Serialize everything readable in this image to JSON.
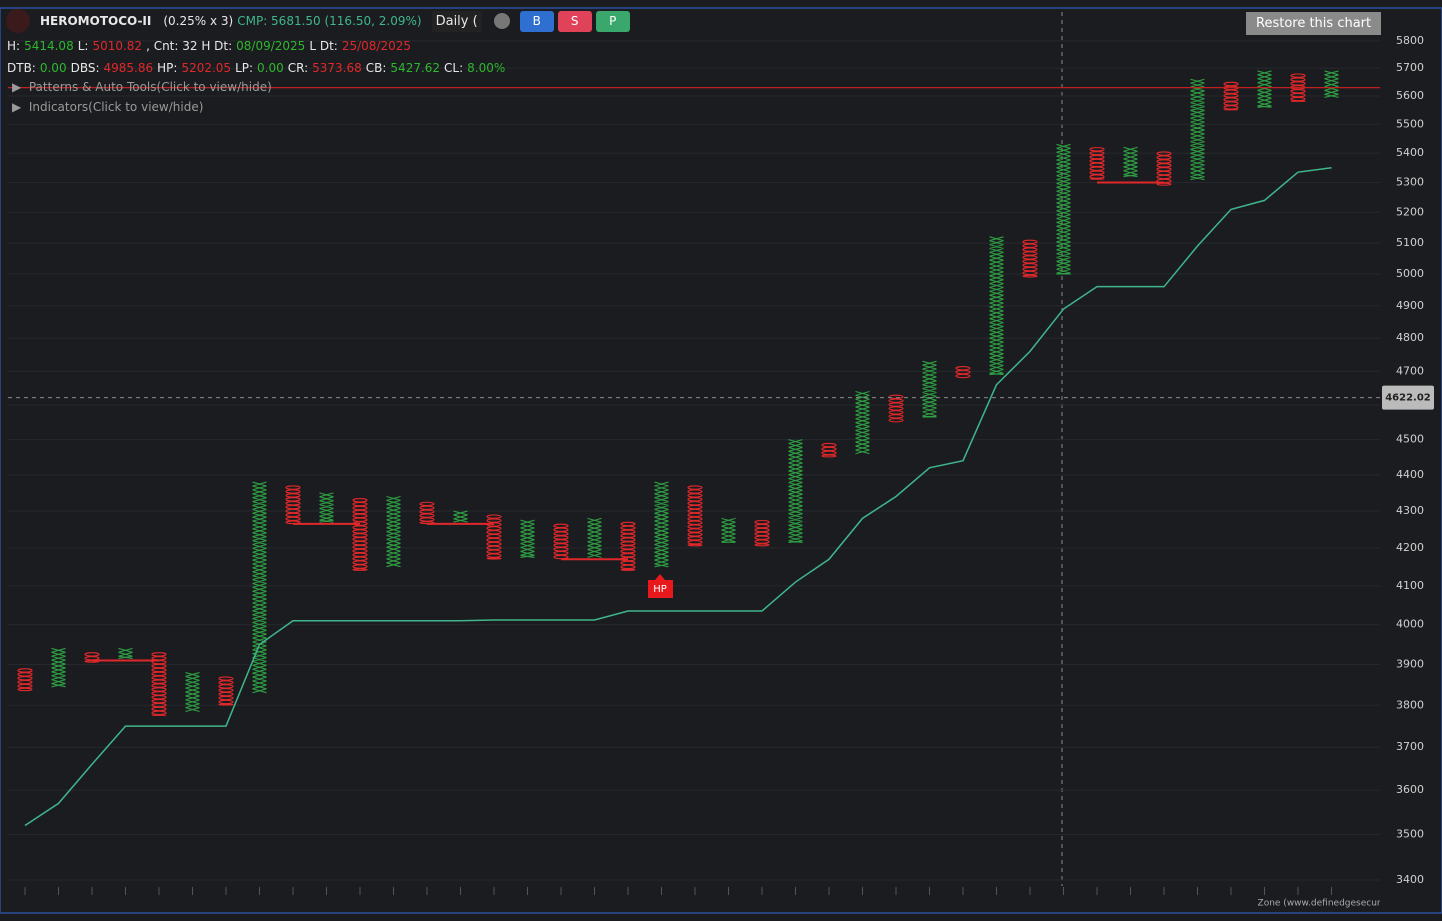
{
  "header": {
    "symbol": "HEROMOTOCO-II",
    "box": "(0.25% x 3)",
    "cmp": "CMP: 5681.50 (116.50, 2.09%)",
    "interval": "Daily (",
    "buttons": [
      {
        "label": "B",
        "color": "#2f6fd0"
      },
      {
        "label": "S",
        "color": "#e0425a"
      },
      {
        "label": "P",
        "color": "#3aa76d"
      }
    ],
    "row1": [
      {
        "text": "H:",
        "color": "#e8e8e8"
      },
      {
        "text": "5414.08",
        "color": "#2eb82e"
      },
      {
        "text": "L:",
        "color": "#e8e8e8"
      },
      {
        "text": "5010.82",
        "color": "#e0282a"
      },
      {
        "text": ", Cnt: 32 H Dt:",
        "color": "#e8e8e8"
      },
      {
        "text": "08/09/2025",
        "color": "#2eb82e"
      },
      {
        "text": "L Dt:",
        "color": "#e8e8e8"
      },
      {
        "text": "25/08/2025",
        "color": "#e0282a"
      }
    ],
    "row2": [
      {
        "text": "DTB:",
        "color": "#e8e8e8"
      },
      {
        "text": "0.00",
        "color": "#2eb82e"
      },
      {
        "text": "DBS:",
        "color": "#e8e8e8"
      },
      {
        "text": "4985.86",
        "color": "#e0282a"
      },
      {
        "text": "HP:",
        "color": "#e8e8e8"
      },
      {
        "text": "5202.05",
        "color": "#e0282a"
      },
      {
        "text": "LP:",
        "color": "#e8e8e8"
      },
      {
        "text": "0.00",
        "color": "#2eb82e"
      },
      {
        "text": "CR:",
        "color": "#e8e8e8"
      },
      {
        "text": "5373.68",
        "color": "#e0282a"
      },
      {
        "text": "CB:",
        "color": "#e8e8e8"
      },
      {
        "text": "5427.62",
        "color": "#2eb82e"
      },
      {
        "text": "CL:",
        "color": "#e8e8e8"
      },
      {
        "text": "8.00%",
        "color": "#2eb82e"
      }
    ],
    "toggles": [
      "Patterns & Auto Tools(Click to view/hide)",
      "Indicators(Click to view/hide)"
    ],
    "restore": "Restore this chart"
  },
  "chart_data": {
    "type": "pnf",
    "log_scale": true,
    "ylim": [
      3385,
      5915
    ],
    "yticks": [
      3400,
      3500,
      3600,
      3700,
      3800,
      3900,
      4000,
      4100,
      4200,
      4300,
      4400,
      4500,
      4600,
      4700,
      4800,
      4900,
      5000,
      5100,
      5200,
      5300,
      5400,
      5500,
      5600,
      5700,
      5800
    ],
    "columns": {
      "kind": [
        "O",
        "X",
        "O",
        "X",
        "O",
        "X",
        "O",
        "X",
        "O",
        "X",
        "O",
        "X",
        "O",
        "X",
        "O",
        "X",
        "O",
        "X",
        "O",
        "X",
        "O",
        "X",
        "O",
        "X",
        "O",
        "X",
        "O",
        "X",
        "O",
        "X",
        "O",
        "X",
        "O",
        "X",
        "O",
        "X",
        "O",
        "X",
        "O",
        "X"
      ],
      "low": [
        3835,
        3845,
        3905,
        3915,
        3775,
        3785,
        3800,
        3830,
        4265,
        4270,
        4140,
        4150,
        4265,
        4270,
        4170,
        4175,
        4170,
        4175,
        4140,
        4150,
        4205,
        4215,
        4205,
        4215,
        4450,
        4460,
        4550,
        4565,
        4680,
        4690,
        4990,
        5000,
        5310,
        5320,
        5290,
        5310,
        5550,
        5560,
        5580,
        5595
      ],
      "high": [
        3890,
        3940,
        3930,
        3940,
        3930,
        3880,
        3870,
        4380,
        4370,
        4350,
        4335,
        4340,
        4325,
        4300,
        4290,
        4275,
        4265,
        4280,
        4270,
        4380,
        4370,
        4280,
        4275,
        4500,
        4490,
        4640,
        4630,
        4730,
        4715,
        5120,
        5110,
        5430,
        5420,
        5420,
        5405,
        5660,
        5650,
        5690,
        5680,
        5690
      ]
    },
    "x_color": "#2ea043",
    "o_color": "#e0282a",
    "trend": {
      "color": "#3fb68b",
      "values": [
        3520,
        3570,
        3660,
        3750,
        3750,
        3750,
        3750,
        3950,
        4010,
        4010,
        4010,
        4010,
        4010,
        4010,
        4012,
        4012,
        4012,
        4012,
        4035,
        4035,
        4035,
        4035,
        4035,
        4110,
        4170,
        4280,
        4340,
        4420,
        4440,
        4660,
        4760,
        4890,
        4960,
        4960,
        4960,
        5090,
        5210,
        5240,
        5335,
        5350
      ]
    },
    "lines": [
      {
        "value": 3910,
        "from": 2,
        "to": 4
      },
      {
        "value": 4265,
        "from": 8,
        "to": 10
      },
      {
        "value": 4265,
        "from": 12,
        "to": 14
      },
      {
        "value": 4170,
        "from": 16,
        "to": 18
      },
      {
        "value": 5300,
        "from": 32,
        "to": 34
      }
    ],
    "price_line": 5630,
    "crosshair": 4622.02,
    "hp_label": "HP",
    "footer": "Zone (www.definedgesecurities.com)"
  }
}
